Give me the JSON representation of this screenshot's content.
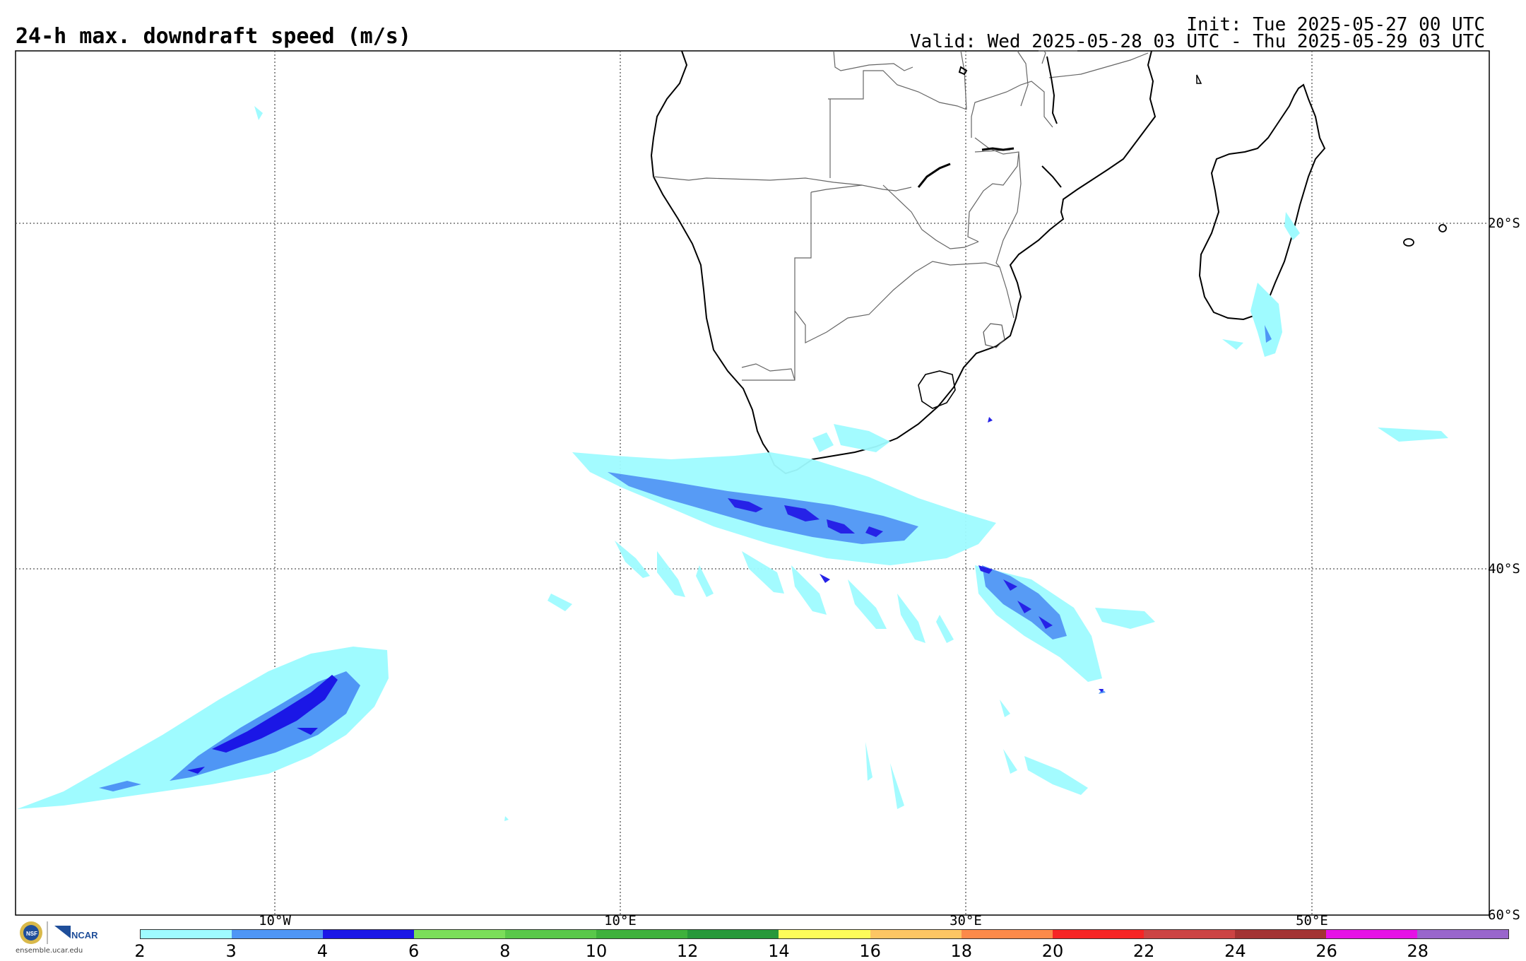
{
  "header": {
    "title": "24-h max. downdraft speed (m/s)",
    "init": "Init: Tue 2025-05-27 00 UTC",
    "valid": "Valid: Wed 2025-05-28 03 UTC - Thu 2025-05-29 03 UTC"
  },
  "map": {
    "lon_labels": [
      "10°W",
      "10°E",
      "30°E",
      "50°E"
    ],
    "lat_labels": [
      "20°S",
      "40°S",
      "60°S"
    ]
  },
  "colorbar": {
    "ticks": [
      "2",
      "3",
      "4",
      "6",
      "8",
      "10",
      "12",
      "14",
      "16",
      "18",
      "20",
      "22",
      "24",
      "26",
      "28"
    ],
    "colors": [
      "#9ffbff",
      "#4f96f5",
      "#1b17e6",
      "#7bde5a",
      "#5ac84a",
      "#3fb13c",
      "#27983a",
      "#fdfc5a",
      "#fdc664",
      "#fc8a4a",
      "#f62525",
      "#cc4444",
      "#a33333",
      "#e612e6",
      "#9966cc"
    ]
  },
  "logos": {
    "nsf": "NSF",
    "ncar": "NCAR",
    "url": "ensemble.ucar.edu"
  }
}
